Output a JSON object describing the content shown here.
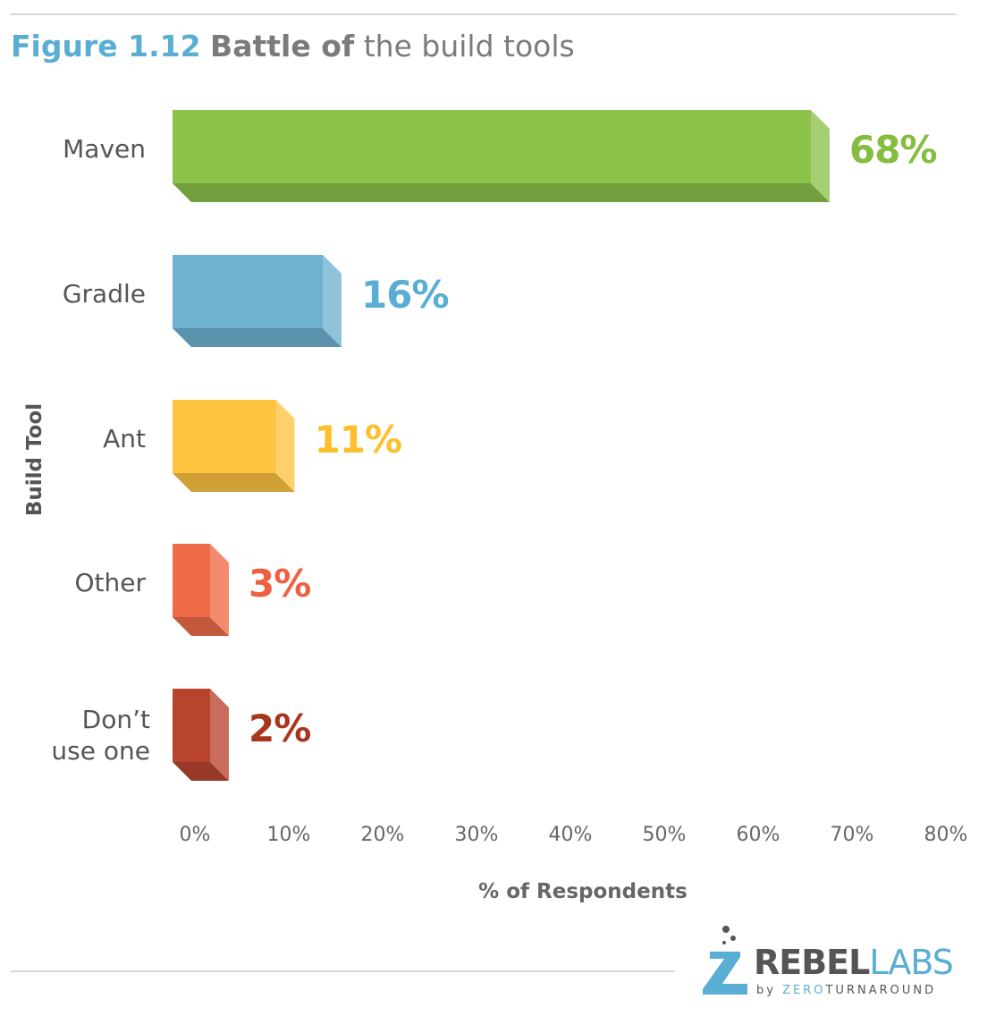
{
  "figure": {
    "title_prefix": "Figure 1.12",
    "title_bold": "Battle of",
    "title_rest": " the build tools"
  },
  "chart_data": {
    "type": "bar",
    "orientation": "horizontal",
    "categories": [
      "Maven",
      "Gradle",
      "Ant",
      "Other",
      "Don’t use one"
    ],
    "category_lines": [
      [
        "Maven"
      ],
      [
        "Gradle"
      ],
      [
        "Ant"
      ],
      [
        "Other"
      ],
      [
        "Don’t",
        "use one"
      ]
    ],
    "values": [
      68,
      16,
      11,
      3,
      2
    ],
    "value_labels": [
      "68%",
      "16%",
      "11%",
      "3%",
      "2%"
    ],
    "colors": [
      "#8dc24b",
      "#6fb2d2",
      "#fec341",
      "#ef6b47",
      "#b9442e"
    ],
    "label_colors": [
      "#84bd40",
      "#5aaed3",
      "#fdbf2d",
      "#ef6041",
      "#a8361f"
    ],
    "xlabel": "% of Respondents",
    "ylabel": "Build Tool",
    "xlim": [
      0,
      80
    ],
    "xticks": [
      "0%",
      "10%",
      "20%",
      "30%",
      "40%",
      "50%",
      "60%",
      "70%",
      "80%"
    ],
    "grid": false,
    "legend": "none"
  },
  "logo": {
    "word_a": "REBEL",
    "word_b": "LABS",
    "sub_by": "by",
    "sub_zero": "ZERO",
    "sub_turnaround": "TURNAROUND"
  }
}
